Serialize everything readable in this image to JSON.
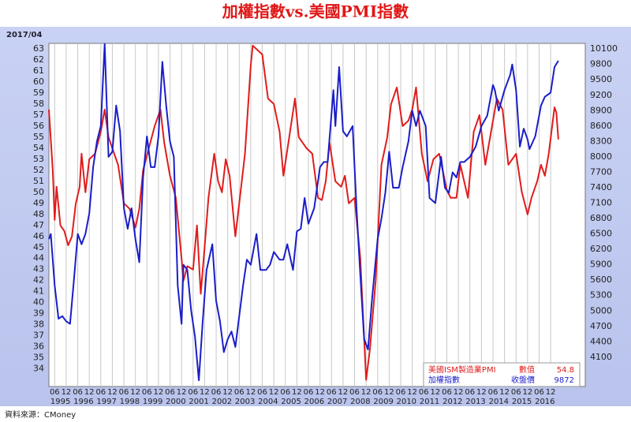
{
  "chart_data": {
    "type": "line",
    "title": "加權指數vs.美國PMI指數",
    "date_label": "2017/04",
    "source": "資料來源：CMoney",
    "grid": "x",
    "xlim": [
      "1995-03",
      "2018-06"
    ],
    "xticks": [
      {
        "value": "1995-06",
        "label": "06"
      },
      {
        "value": "1995-12",
        "label": "12"
      },
      {
        "value": "1996-06",
        "label": "06"
      },
      {
        "value": "1996-12",
        "label": "12"
      },
      {
        "value": "1997-06",
        "label": "06"
      },
      {
        "value": "1997-12",
        "label": "12"
      },
      {
        "value": "1998-06",
        "label": "06"
      },
      {
        "value": "1998-12",
        "label": "12"
      },
      {
        "value": "1999-06",
        "label": "06"
      },
      {
        "value": "1999-12",
        "label": "12"
      },
      {
        "value": "2000-06",
        "label": "06"
      },
      {
        "value": "2000-12",
        "label": "12"
      },
      {
        "value": "2001-06",
        "label": "06"
      },
      {
        "value": "2001-12",
        "label": "12"
      },
      {
        "value": "2002-06",
        "label": "06"
      },
      {
        "value": "2002-12",
        "label": "12"
      },
      {
        "value": "2003-06",
        "label": "06"
      },
      {
        "value": "2003-12",
        "label": "12"
      },
      {
        "value": "2004-06",
        "label": "06"
      },
      {
        "value": "2004-12",
        "label": "12"
      },
      {
        "value": "2005-06",
        "label": "06"
      },
      {
        "value": "2005-12",
        "label": "12"
      },
      {
        "value": "2006-06",
        "label": "06"
      },
      {
        "value": "2006-12",
        "label": "12"
      },
      {
        "value": "2007-06",
        "label": "06"
      },
      {
        "value": "2007-12",
        "label": "12"
      },
      {
        "value": "2008-06",
        "label": "06"
      },
      {
        "value": "2008-12",
        "label": "12"
      },
      {
        "value": "2009-06",
        "label": "06"
      },
      {
        "value": "2009-12",
        "label": "12"
      },
      {
        "value": "2010-06",
        "label": "06"
      },
      {
        "value": "2010-12",
        "label": "12"
      },
      {
        "value": "2011-06",
        "label": "06"
      },
      {
        "value": "2011-12",
        "label": "12"
      },
      {
        "value": "2012-06",
        "label": "06"
      },
      {
        "value": "2012-12",
        "label": "12"
      },
      {
        "value": "2013-06",
        "label": "06"
      },
      {
        "value": "2013-12",
        "label": "12"
      },
      {
        "value": "2014-06",
        "label": "06"
      },
      {
        "value": "2014-12",
        "label": "12"
      },
      {
        "value": "2015-06",
        "label": "06"
      },
      {
        "value": "2015-12",
        "label": "12"
      },
      {
        "value": "2016-06",
        "label": "06"
      },
      {
        "value": "2016-12",
        "label": "12"
      }
    ],
    "year_labels": [
      {
        "value": "1995-09",
        "label": "1995"
      },
      {
        "value": "1996-09",
        "label": "1996"
      },
      {
        "value": "1997-09",
        "label": "1997"
      },
      {
        "value": "1998-09",
        "label": "1998"
      },
      {
        "value": "1999-09",
        "label": "1999"
      },
      {
        "value": "2000-09",
        "label": "2000"
      },
      {
        "value": "2001-09",
        "label": "2001"
      },
      {
        "value": "2002-09",
        "label": "2002"
      },
      {
        "value": "2003-09",
        "label": "2003"
      },
      {
        "value": "2004-09",
        "label": "2004"
      },
      {
        "value": "2005-09",
        "label": "2005"
      },
      {
        "value": "2006-09",
        "label": "2006"
      },
      {
        "value": "2007-09",
        "label": "2007"
      },
      {
        "value": "2008-09",
        "label": "2008"
      },
      {
        "value": "2009-09",
        "label": "2009"
      },
      {
        "value": "2010-09",
        "label": "2010"
      },
      {
        "value": "2011-09",
        "label": "2011"
      },
      {
        "value": "2012-09",
        "label": "2012"
      },
      {
        "value": "2013-09",
        "label": "2013"
      },
      {
        "value": "2014-09",
        "label": "2014"
      },
      {
        "value": "2015-09",
        "label": "2015"
      },
      {
        "value": "2016-09",
        "label": "2016"
      }
    ],
    "ylim": [
      32.4,
      63.5
    ],
    "yticks": [
      34,
      35,
      36,
      37,
      38,
      39,
      40,
      41,
      42,
      43,
      44,
      45,
      46,
      47,
      48,
      49,
      50,
      51,
      52,
      53,
      54,
      55,
      56,
      57,
      58,
      59,
      60,
      61,
      62,
      63
    ],
    "y2lim": [
      3530,
      10210
    ],
    "y2ticks": [
      4100,
      4400,
      4700,
      5000,
      5300,
      5600,
      5900,
      6200,
      6500,
      6800,
      7100,
      7400,
      7700,
      8000,
      8300,
      8600,
      8900,
      9200,
      9500,
      9800,
      10100
    ],
    "series": [
      {
        "name": "美國ISM製造業PMI",
        "stat_label": "數值",
        "color": "#e01c1c",
        "x": [
          "1995-03",
          "1995-05",
          "1995-06",
          "1995-07",
          "1995-09",
          "1995-11",
          "1996-01",
          "1996-03",
          "1996-05",
          "1996-07",
          "1996-08",
          "1996-10",
          "1996-12",
          "1997-03",
          "1997-06",
          "1997-08",
          "1997-10",
          "1997-12",
          "1998-03",
          "1998-06",
          "1998-09",
          "1998-12",
          "1999-02",
          "1999-04",
          "1999-07",
          "1999-10",
          "2000-01",
          "2000-03",
          "2000-06",
          "2000-09",
          "2000-12",
          "2001-01",
          "2001-03",
          "2001-06",
          "2001-08",
          "2001-10",
          "2001-12",
          "2002-02",
          "2002-05",
          "2002-07",
          "2002-09",
          "2002-11",
          "2003-01",
          "2003-04",
          "2003-06",
          "2003-09",
          "2003-12",
          "2004-01",
          "2004-06",
          "2004-09",
          "2004-12",
          "2005-03",
          "2005-05",
          "2005-08",
          "2005-11",
          "2006-01",
          "2006-05",
          "2006-08",
          "2006-11",
          "2007-01",
          "2007-03",
          "2007-05",
          "2007-08",
          "2007-11",
          "2008-01",
          "2008-03",
          "2008-06",
          "2008-09",
          "2008-12",
          "2009-02",
          "2009-05",
          "2009-08",
          "2009-11",
          "2010-01",
          "2010-04",
          "2010-07",
          "2010-10",
          "2010-12",
          "2011-02",
          "2011-05",
          "2011-08",
          "2011-11",
          "2012-02",
          "2012-06",
          "2012-08",
          "2012-11",
          "2013-01",
          "2013-05",
          "2013-08",
          "2013-11",
          "2014-02",
          "2014-05",
          "2014-08",
          "2014-11",
          "2015-02",
          "2015-06",
          "2015-09",
          "2015-12",
          "2016-02",
          "2016-05",
          "2016-07",
          "2016-09",
          "2016-11",
          "2017-02",
          "2017-03",
          "2017-04"
        ],
        "values": [
          57.5,
          52,
          47.5,
          50.5,
          47,
          46.5,
          45.2,
          46,
          49,
          50.5,
          53.5,
          50,
          53,
          53.5,
          55.5,
          57.5,
          55,
          54,
          52.5,
          49,
          48.5,
          46.8,
          48.5,
          52,
          54,
          56,
          57.5,
          54.5,
          51.5,
          49.5,
          44,
          42,
          43.3,
          43,
          47,
          40.8,
          45,
          49.5,
          53.5,
          51,
          50,
          53,
          51.5,
          46,
          49,
          53.5,
          61.5,
          63.3,
          62.5,
          58.5,
          58,
          55.5,
          51.5,
          55,
          58.5,
          55,
          54,
          53.5,
          49.5,
          49.3,
          51,
          54.5,
          51,
          50.5,
          51.5,
          49,
          49.5,
          44,
          33,
          35.8,
          42,
          52.5,
          55,
          58,
          59.5,
          56,
          56.5,
          57.5,
          59.5,
          53.5,
          51,
          53,
          53.5,
          50.2,
          49.5,
          49.5,
          52.5,
          49.5,
          55.5,
          57,
          52.5,
          55.5,
          58.5,
          57.5,
          52.5,
          53.5,
          50,
          48,
          49.5,
          51,
          52.5,
          51.5,
          53.5,
          57.7,
          57.2,
          54.8
        ]
      },
      {
        "name": "加權指數",
        "stat_label": "收盤價",
        "color": "#1a1ec8",
        "axis": "y2",
        "x": [
          "1995-03",
          "1995-04",
          "1995-06",
          "1995-08",
          "1995-10",
          "1995-12",
          "1996-02",
          "1996-04",
          "1996-06",
          "1996-08",
          "1996-10",
          "1996-12",
          "1997-02",
          "1997-04",
          "1997-06",
          "1997-08",
          "1997-10",
          "1997-12",
          "1998-02",
          "1998-04",
          "1998-06",
          "1998-08",
          "1998-10",
          "1998-12",
          "1999-02",
          "1999-04",
          "1999-06",
          "1999-08",
          "1999-10",
          "1999-12",
          "2000-02",
          "2000-04",
          "2000-06",
          "2000-08",
          "2000-10",
          "2000-12",
          "2001-01",
          "2001-03",
          "2001-05",
          "2001-07",
          "2001-09",
          "2001-11",
          "2002-01",
          "2002-04",
          "2002-06",
          "2002-08",
          "2002-10",
          "2002-12",
          "2003-02",
          "2003-04",
          "2003-06",
          "2003-08",
          "2003-10",
          "2003-12",
          "2004-03",
          "2004-05",
          "2004-08",
          "2004-10",
          "2004-12",
          "2005-03",
          "2005-05",
          "2005-07",
          "2005-10",
          "2005-12",
          "2006-02",
          "2006-04",
          "2006-06",
          "2006-09",
          "2006-12",
          "2007-02",
          "2007-04",
          "2007-07",
          "2007-08",
          "2007-10",
          "2007-12",
          "2008-02",
          "2008-05",
          "2008-07",
          "2008-09",
          "2008-11",
          "2009-01",
          "2009-03",
          "2009-06",
          "2009-08",
          "2009-10",
          "2009-12",
          "2010-02",
          "2010-05",
          "2010-07",
          "2010-10",
          "2010-12",
          "2011-02",
          "2011-04",
          "2011-07",
          "2011-09",
          "2011-12",
          "2012-03",
          "2012-05",
          "2012-07",
          "2012-09",
          "2012-11",
          "2013-01",
          "2013-03",
          "2013-06",
          "2013-09",
          "2013-12",
          "2014-03",
          "2014-06",
          "2014-07",
          "2014-09",
          "2014-12",
          "2015-03",
          "2015-04",
          "2015-06",
          "2015-08",
          "2015-10",
          "2015-12",
          "2016-01",
          "2016-04",
          "2016-07",
          "2016-09",
          "2016-12",
          "2017-02",
          "2017-04"
        ],
        "values": [
          6400,
          6500,
          5500,
          4850,
          4900,
          4800,
          4750,
          5600,
          6500,
          6300,
          6500,
          6900,
          7800,
          8300,
          8600,
          10200,
          8000,
          8100,
          9000,
          8500,
          7000,
          6600,
          7000,
          6400,
          5950,
          7600,
          8400,
          7800,
          7800,
          8400,
          9850,
          9000,
          8300,
          8000,
          5500,
          4750,
          5900,
          5800,
          5000,
          4500,
          3650,
          4800,
          5800,
          6300,
          5200,
          4800,
          4200,
          4450,
          4600,
          4300,
          4900,
          5500,
          6000,
          5900,
          6500,
          5800,
          5800,
          5900,
          6150,
          6000,
          6000,
          6300,
          5800,
          6550,
          6600,
          7200,
          6700,
          7000,
          7800,
          7900,
          7900,
          9300,
          8600,
          9750,
          8500,
          8400,
          8600,
          7000,
          5700,
          4450,
          4250,
          5200,
          6400,
          6800,
          7300,
          8100,
          7400,
          7400,
          7800,
          8300,
          8900,
          8600,
          8900,
          8600,
          7200,
          7100,
          8000,
          7400,
          7300,
          7700,
          7600,
          7900,
          7900,
          8000,
          8200,
          8600,
          8800,
          9400,
          9300,
          8900,
          9300,
          9600,
          9800,
          9300,
          8200,
          8550,
          8340,
          8150,
          8400,
          9000,
          9170,
          9250,
          9750,
          9872
        ]
      }
    ]
  }
}
